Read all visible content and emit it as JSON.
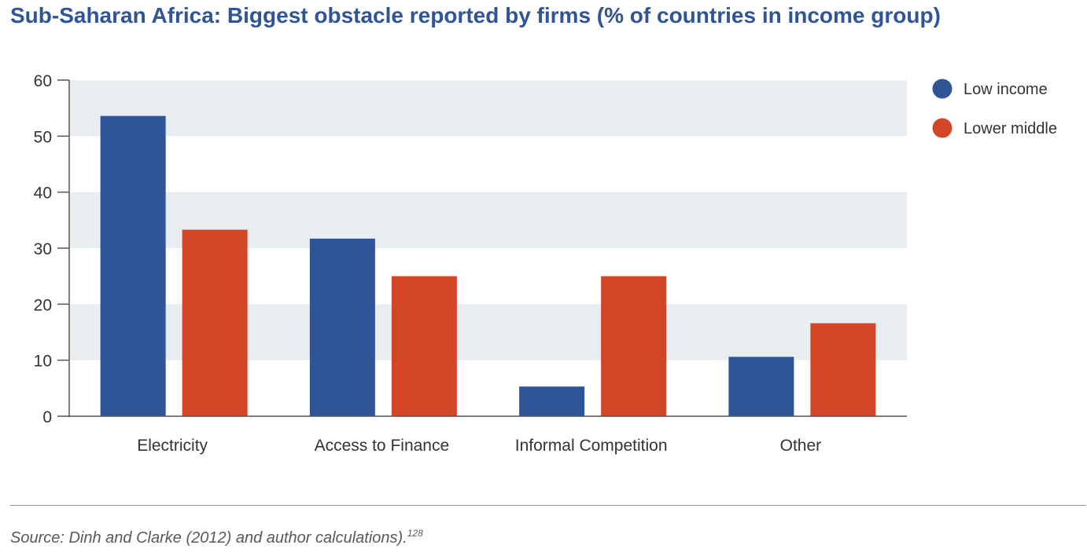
{
  "title": "Sub-Saharan Africa: Biggest obstacle reported by firms (% of countries in income group)",
  "source": {
    "text": "Source: Dinh and Clarke (2012) and author calculations).",
    "footnote": "128"
  },
  "chart_data": {
    "type": "bar",
    "categories": [
      "Electricity",
      "Access to Finance",
      "Informal Competition",
      "Other"
    ],
    "series": [
      {
        "name": "Low income",
        "color": "#2f5597",
        "values": [
          53.6,
          31.7,
          5.3,
          10.6
        ]
      },
      {
        "name": "Lower middle",
        "color": "#d24627",
        "values": [
          33.3,
          25.0,
          25.0,
          16.6
        ]
      }
    ],
    "ylim": [
      0,
      60
    ],
    "yticks": [
      0,
      10,
      20,
      30,
      40,
      50,
      60
    ],
    "grid": "alternating bands",
    "legend": "top-right",
    "band_color": "#e8edf0"
  }
}
